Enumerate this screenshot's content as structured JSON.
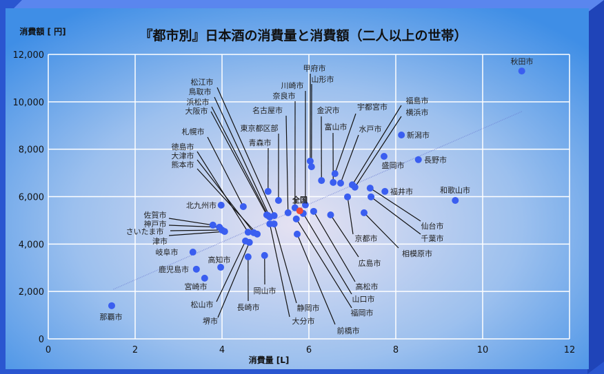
{
  "chart_data": {
    "type": "scatter",
    "title": "『都市別』日本酒の消費量と消費額（二人以上の世帯）",
    "xlabel": "消費量 [L]",
    "ylabel": "消費額 [ 円]",
    "xlim": [
      0,
      12
    ],
    "ylim": [
      0,
      12000
    ],
    "xticks": [
      "0",
      "2",
      "4",
      "6",
      "8",
      "10",
      "12"
    ],
    "yticks": [
      "0",
      "2,000",
      "4,000",
      "6,000",
      "8,000",
      "10,000",
      "12,000"
    ],
    "grid": true,
    "colors": {
      "point": "#3a5ef0",
      "highlight": "#f04a3a",
      "trend": "#6a7ad0"
    },
    "trendline": {
      "x": [
        1.5,
        10.9
      ],
      "y": [
        2090,
        9590
      ]
    },
    "points": [
      {
        "name": "秋田市",
        "x": 10.9,
        "y": 11300
      },
      {
        "name": "那覇市",
        "x": 1.46,
        "y": 1400
      },
      {
        "name": "新潟市",
        "x": 8.13,
        "y": 8600
      },
      {
        "name": "長野市",
        "x": 8.52,
        "y": 7560
      },
      {
        "name": "盛岡市",
        "x": 7.73,
        "y": 7700
      },
      {
        "name": "福井市",
        "x": 7.75,
        "y": 6220
      },
      {
        "name": "和歌山市",
        "x": 9.37,
        "y": 5840
      },
      {
        "name": "福島市",
        "x": 7.0,
        "y": 6500
      },
      {
        "name": "横浜市",
        "x": 7.06,
        "y": 6400
      },
      {
        "name": "宇都宮市",
        "x": 6.6,
        "y": 6970
      },
      {
        "name": "水戸市",
        "x": 6.73,
        "y": 6570
      },
      {
        "name": "金沢市",
        "x": 6.29,
        "y": 6680
      },
      {
        "name": "富山市",
        "x": 6.56,
        "y": 6600
      },
      {
        "name": "甲府市",
        "x": 6.03,
        "y": 7500
      },
      {
        "name": "山形市",
        "x": 6.06,
        "y": 7260
      },
      {
        "name": "川崎市",
        "x": 5.92,
        "y": 5650
      },
      {
        "name": "奈良市",
        "x": 5.68,
        "y": 5530
      },
      {
        "name": "名古屋市",
        "x": 5.52,
        "y": 5320
      },
      {
        "name": "東京都区部",
        "x": 5.3,
        "y": 5840
      },
      {
        "name": "青森市",
        "x": 5.06,
        "y": 6220
      },
      {
        "name": "札幌市",
        "x": 4.49,
        "y": 5580
      },
      {
        "name": "松江市",
        "x": 5.2,
        "y": 5200
      },
      {
        "name": "鳥取市",
        "x": 5.1,
        "y": 5140
      },
      {
        "name": "浜松市",
        "x": 5.06,
        "y": 5200
      },
      {
        "name": "大阪市",
        "x": 5.03,
        "y": 5230
      },
      {
        "name": "徳島市",
        "x": 4.6,
        "y": 4500
      },
      {
        "name": "大津市",
        "x": 4.73,
        "y": 4480
      },
      {
        "name": "熊本市",
        "x": 4.81,
        "y": 4420
      },
      {
        "name": "北九州市",
        "x": 3.98,
        "y": 5640
      },
      {
        "name": "佐賀市",
        "x": 3.79,
        "y": 4800
      },
      {
        "name": "神戸市",
        "x": 3.94,
        "y": 4710
      },
      {
        "name": "さいたま市",
        "x": 4.0,
        "y": 4590
      },
      {
        "name": "津市",
        "x": 4.06,
        "y": 4530
      },
      {
        "name": "岐阜市",
        "x": 3.33,
        "y": 3660
      },
      {
        "name": "鹿児島市",
        "x": 3.41,
        "y": 2940
      },
      {
        "name": "宮崎市",
        "x": 3.6,
        "y": 2560
      },
      {
        "name": "高知市",
        "x": 3.97,
        "y": 3020
      },
      {
        "name": "松山市",
        "x": 4.54,
        "y": 4130
      },
      {
        "name": "堺市",
        "x": 4.63,
        "y": 4070
      },
      {
        "name": "長崎市",
        "x": 4.6,
        "y": 3460
      },
      {
        "name": "岡山市",
        "x": 4.98,
        "y": 3520
      },
      {
        "name": "静岡市",
        "x": 5.2,
        "y": 4850
      },
      {
        "name": "大分市",
        "x": 5.1,
        "y": 4850
      },
      {
        "name": "前橋市",
        "x": 5.73,
        "y": 4420
      },
      {
        "name": "福岡市",
        "x": 5.71,
        "y": 5060
      },
      {
        "name": "山口市",
        "x": 5.87,
        "y": 5290
      },
      {
        "name": "高松市",
        "x": 6.11,
        "y": 5380
      },
      {
        "name": "広島市",
        "x": 6.5,
        "y": 5230
      },
      {
        "name": "京都市",
        "x": 6.89,
        "y": 5990
      },
      {
        "name": "相模原市",
        "x": 7.27,
        "y": 5320
      },
      {
        "name": "千葉市",
        "x": 7.43,
        "y": 5990
      },
      {
        "name": "仙台市",
        "x": 7.41,
        "y": 6360
      },
      {
        "name": "全国",
        "x": 5.79,
        "y": 5400,
        "highlight": true
      }
    ]
  }
}
